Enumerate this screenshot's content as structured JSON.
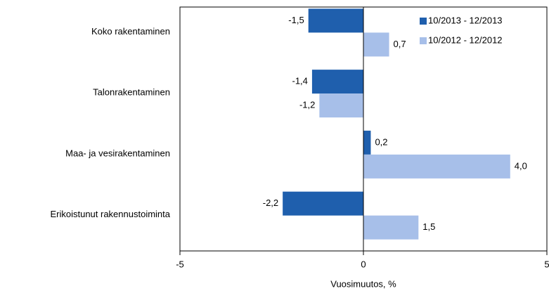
{
  "chart_data": {
    "type": "barh",
    "xlabel": "Vuosimuutos, %",
    "categories": [
      "Koko rakentaminen",
      "Talonrakentaminen",
      "Maa- ja vesirakentaminen",
      "Erikoistunut rakennustoiminta"
    ],
    "series": [
      {
        "name": "10/2013 - 12/2013",
        "color": "#1f5fad",
        "values": [
          -1.5,
          -1.4,
          0.2,
          -2.2
        ],
        "value_labels": [
          "-1,5",
          "-1,4",
          "0,2",
          "-2,2"
        ]
      },
      {
        "name": "10/2012 - 12/2012",
        "color": "#a7bfe9",
        "values": [
          0.7,
          -1.2,
          4.0,
          1.5
        ],
        "value_labels": [
          "0,7",
          "-1,2",
          "4,0",
          "1,5"
        ]
      }
    ],
    "xlim": [
      -5,
      5
    ],
    "xticks": [
      -5,
      0,
      5
    ],
    "legend": "upper right"
  }
}
